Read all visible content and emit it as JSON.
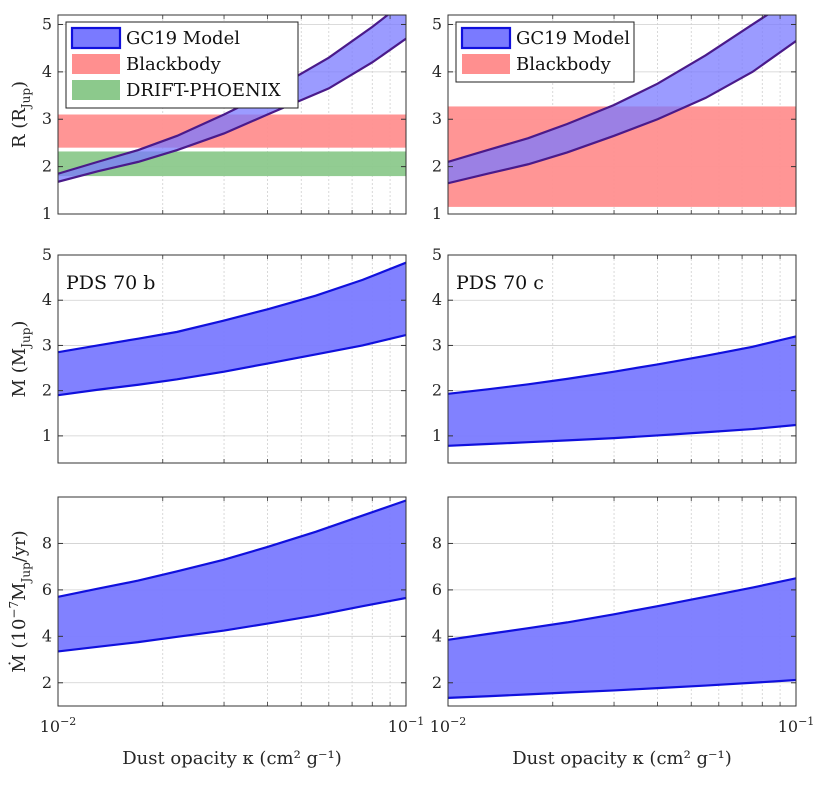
{
  "colors": {
    "model_fill": "#7a7aff",
    "model_edge": "#1010dd",
    "blackbody": "#ff8f8f",
    "drift": "#8cc98c",
    "grid": "#cfcfcf",
    "axis": "#333333"
  },
  "chart_data": [
    {
      "type": "area",
      "panel": "R-b",
      "ylabel_main": "R (R",
      "ylabel_sub": "Jup",
      "ylabel_tail": ")",
      "xscale": "log",
      "xlim": [
        0.01,
        0.1
      ],
      "ylim": [
        1,
        5.2
      ],
      "yticks": [
        1,
        2,
        3,
        4,
        5
      ],
      "xticks": [
        0.01,
        0.1
      ],
      "grid": true,
      "legend_position": "top-left",
      "legend": [
        "GC19 Model",
        "Blackbody",
        "DRIFT-PHOENIX"
      ],
      "series": [
        {
          "name": "GC19 Model",
          "kind": "band",
          "x": [
            0.01,
            0.013,
            0.017,
            0.022,
            0.03,
            0.04,
            0.06,
            0.08,
            0.1
          ],
          "lower": [
            1.68,
            1.9,
            2.1,
            2.35,
            2.7,
            3.1,
            3.65,
            4.2,
            4.7
          ],
          "upper": [
            1.85,
            2.1,
            2.35,
            2.65,
            3.1,
            3.55,
            4.3,
            4.95,
            5.5
          ]
        },
        {
          "name": "Blackbody",
          "kind": "hband",
          "y": [
            2.4,
            3.1
          ]
        },
        {
          "name": "DRIFT-PHOENIX",
          "kind": "hband",
          "y": [
            1.8,
            2.32
          ]
        }
      ]
    },
    {
      "type": "area",
      "panel": "R-c",
      "xscale": "log",
      "xlim": [
        0.01,
        0.1
      ],
      "ylim": [
        1,
        5.2
      ],
      "yticks": [
        1,
        2,
        3,
        4,
        5
      ],
      "xticks": [
        0.01,
        0.1
      ],
      "grid": true,
      "legend_position": "top-left",
      "legend": [
        "GC19 Model",
        "Blackbody"
      ],
      "series": [
        {
          "name": "GC19 Model",
          "kind": "band",
          "x": [
            0.01,
            0.013,
            0.017,
            0.022,
            0.03,
            0.04,
            0.055,
            0.075,
            0.1
          ],
          "lower": [
            1.65,
            1.85,
            2.05,
            2.3,
            2.65,
            3.0,
            3.45,
            4.0,
            4.65
          ],
          "upper": [
            2.1,
            2.35,
            2.6,
            2.9,
            3.3,
            3.75,
            4.35,
            5.0,
            5.6
          ]
        },
        {
          "name": "Blackbody",
          "kind": "hband",
          "y": [
            1.15,
            3.27
          ]
        }
      ]
    },
    {
      "type": "area",
      "panel": "M-b",
      "label": "PDS 70 b",
      "ylabel_main": "M (M",
      "ylabel_sub": "Jup",
      "ylabel_tail": ")",
      "xscale": "log",
      "xlim": [
        0.01,
        0.1
      ],
      "ylim": [
        0.4,
        5
      ],
      "yticks": [
        1,
        2,
        3,
        4,
        5
      ],
      "xticks": [
        0.01,
        0.1
      ],
      "grid": true,
      "series": [
        {
          "name": "GC19 Model",
          "kind": "band",
          "x": [
            0.01,
            0.013,
            0.017,
            0.022,
            0.03,
            0.04,
            0.055,
            0.075,
            0.1
          ],
          "lower": [
            1.9,
            2.02,
            2.13,
            2.25,
            2.42,
            2.6,
            2.8,
            3.0,
            3.23
          ],
          "upper": [
            2.85,
            3.0,
            3.15,
            3.3,
            3.55,
            3.8,
            4.1,
            4.45,
            4.83
          ]
        }
      ]
    },
    {
      "type": "area",
      "panel": "M-c",
      "label": "PDS 70 c",
      "xscale": "log",
      "xlim": [
        0.01,
        0.1
      ],
      "ylim": [
        0.4,
        5
      ],
      "yticks": [
        1,
        2,
        3,
        4,
        5
      ],
      "xticks": [
        0.01,
        0.1
      ],
      "grid": true,
      "series": [
        {
          "name": "GC19 Model",
          "kind": "band",
          "x": [
            0.01,
            0.013,
            0.017,
            0.022,
            0.03,
            0.04,
            0.055,
            0.075,
            0.1
          ],
          "lower": [
            0.78,
            0.82,
            0.86,
            0.9,
            0.95,
            1.01,
            1.08,
            1.15,
            1.24
          ],
          "upper": [
            1.93,
            2.03,
            2.14,
            2.26,
            2.42,
            2.58,
            2.77,
            2.97,
            3.2
          ]
        }
      ]
    },
    {
      "type": "area",
      "panel": "Mdot-b",
      "ylabel_main": "Ṁ (10",
      "ylabel_sup": "−7",
      "ylabel_mid": "M",
      "ylabel_sub": "Jup",
      "ylabel_tail": "/yr)",
      "xlabel": "Dust opacity κ (cm² g⁻¹)",
      "xscale": "log",
      "xlim": [
        0.01,
        0.1
      ],
      "ylim": [
        1,
        10
      ],
      "yticks": [
        2,
        4,
        6,
        8
      ],
      "xticks": [
        0.01,
        0.1
      ],
      "grid": true,
      "series": [
        {
          "name": "GC19 Model",
          "kind": "band",
          "x": [
            0.01,
            0.013,
            0.017,
            0.022,
            0.03,
            0.04,
            0.055,
            0.075,
            0.1
          ],
          "lower": [
            3.35,
            3.55,
            3.75,
            3.98,
            4.25,
            4.55,
            4.9,
            5.3,
            5.65
          ],
          "upper": [
            5.7,
            6.05,
            6.4,
            6.8,
            7.3,
            7.85,
            8.5,
            9.2,
            9.85
          ]
        }
      ]
    },
    {
      "type": "area",
      "panel": "Mdot-c",
      "xlabel": "Dust opacity κ (cm² g⁻¹)",
      "xscale": "log",
      "xlim": [
        0.01,
        0.1
      ],
      "ylim": [
        1,
        10
      ],
      "yticks": [
        2,
        4,
        6,
        8
      ],
      "xticks": [
        0.01,
        0.1
      ],
      "grid": true,
      "series": [
        {
          "name": "GC19 Model",
          "kind": "band",
          "x": [
            0.01,
            0.013,
            0.017,
            0.022,
            0.03,
            0.04,
            0.055,
            0.075,
            0.1
          ],
          "lower": [
            1.35,
            1.42,
            1.5,
            1.58,
            1.67,
            1.77,
            1.88,
            2.0,
            2.12
          ],
          "upper": [
            3.85,
            4.1,
            4.35,
            4.6,
            4.95,
            5.3,
            5.7,
            6.1,
            6.5
          ]
        }
      ]
    }
  ]
}
